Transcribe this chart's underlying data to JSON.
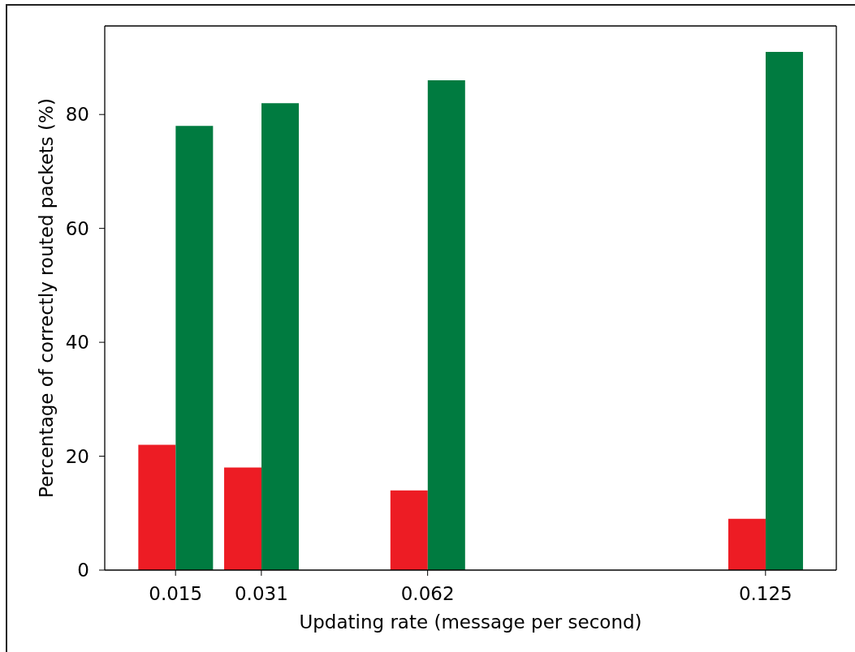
{
  "chart_data": {
    "type": "bar",
    "xlabel": "Updating rate (message per second)",
    "ylabel": "Percentage of correctly routed packets (%)",
    "x": [
      0.015,
      0.031,
      0.062,
      0.125
    ],
    "series": [
      {
        "color": "#ed1c24",
        "values": [
          22,
          18,
          14,
          9
        ]
      },
      {
        "color": "#007b40",
        "values": [
          78,
          82,
          86,
          91
        ]
      }
    ],
    "xlim": [
      0.0018,
      0.1382
    ],
    "xticks": [
      0.015,
      0.031,
      0.062,
      0.125
    ],
    "ylim": [
      0,
      95.55
    ],
    "yticks": [
      0,
      20,
      40,
      60,
      80
    ]
  }
}
